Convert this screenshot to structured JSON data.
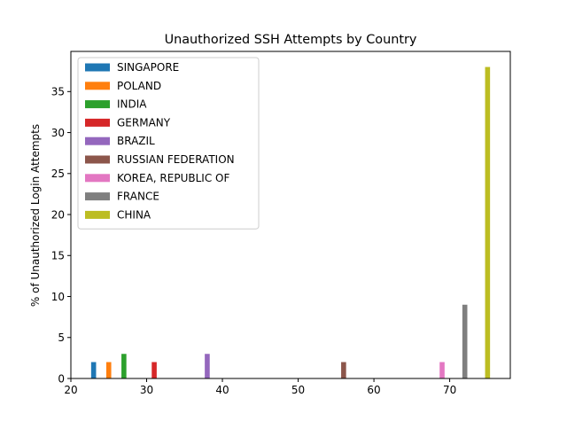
{
  "chart_data": {
    "type": "bar",
    "title": "Unauthorized SSH Attempts by Country",
    "xlabel": "",
    "ylabel": "% of  Unauthorized Login Attempts",
    "xlim": [
      20,
      78
    ],
    "ylim": [
      0,
      39.9
    ],
    "xticks": [
      20,
      30,
      40,
      50,
      60,
      70
    ],
    "yticks": [
      0,
      5,
      10,
      15,
      20,
      25,
      30,
      35
    ],
    "grid": false,
    "legend_position": "top-left",
    "series": [
      {
        "name": "SINGAPORE",
        "color": "#1f77b4",
        "x": 23,
        "value": 2
      },
      {
        "name": "POLAND",
        "color": "#ff7f0e",
        "x": 25,
        "value": 2
      },
      {
        "name": "INDIA",
        "color": "#2ca02c",
        "x": 27,
        "value": 3
      },
      {
        "name": "GERMANY",
        "color": "#d62728",
        "x": 31,
        "value": 2
      },
      {
        "name": "BRAZIL",
        "color": "#9467bd",
        "x": 38,
        "value": 3
      },
      {
        "name": "RUSSIAN FEDERATION",
        "color": "#8c564b",
        "x": 56,
        "value": 2
      },
      {
        "name": "KOREA, REPUBLIC OF",
        "color": "#e377c2",
        "x": 69,
        "value": 2
      },
      {
        "name": "FRANCE",
        "color": "#7f7f7f",
        "x": 72,
        "value": 9
      },
      {
        "name": "CHINA",
        "color": "#bcbd22",
        "x": 75,
        "value": 38
      }
    ]
  }
}
